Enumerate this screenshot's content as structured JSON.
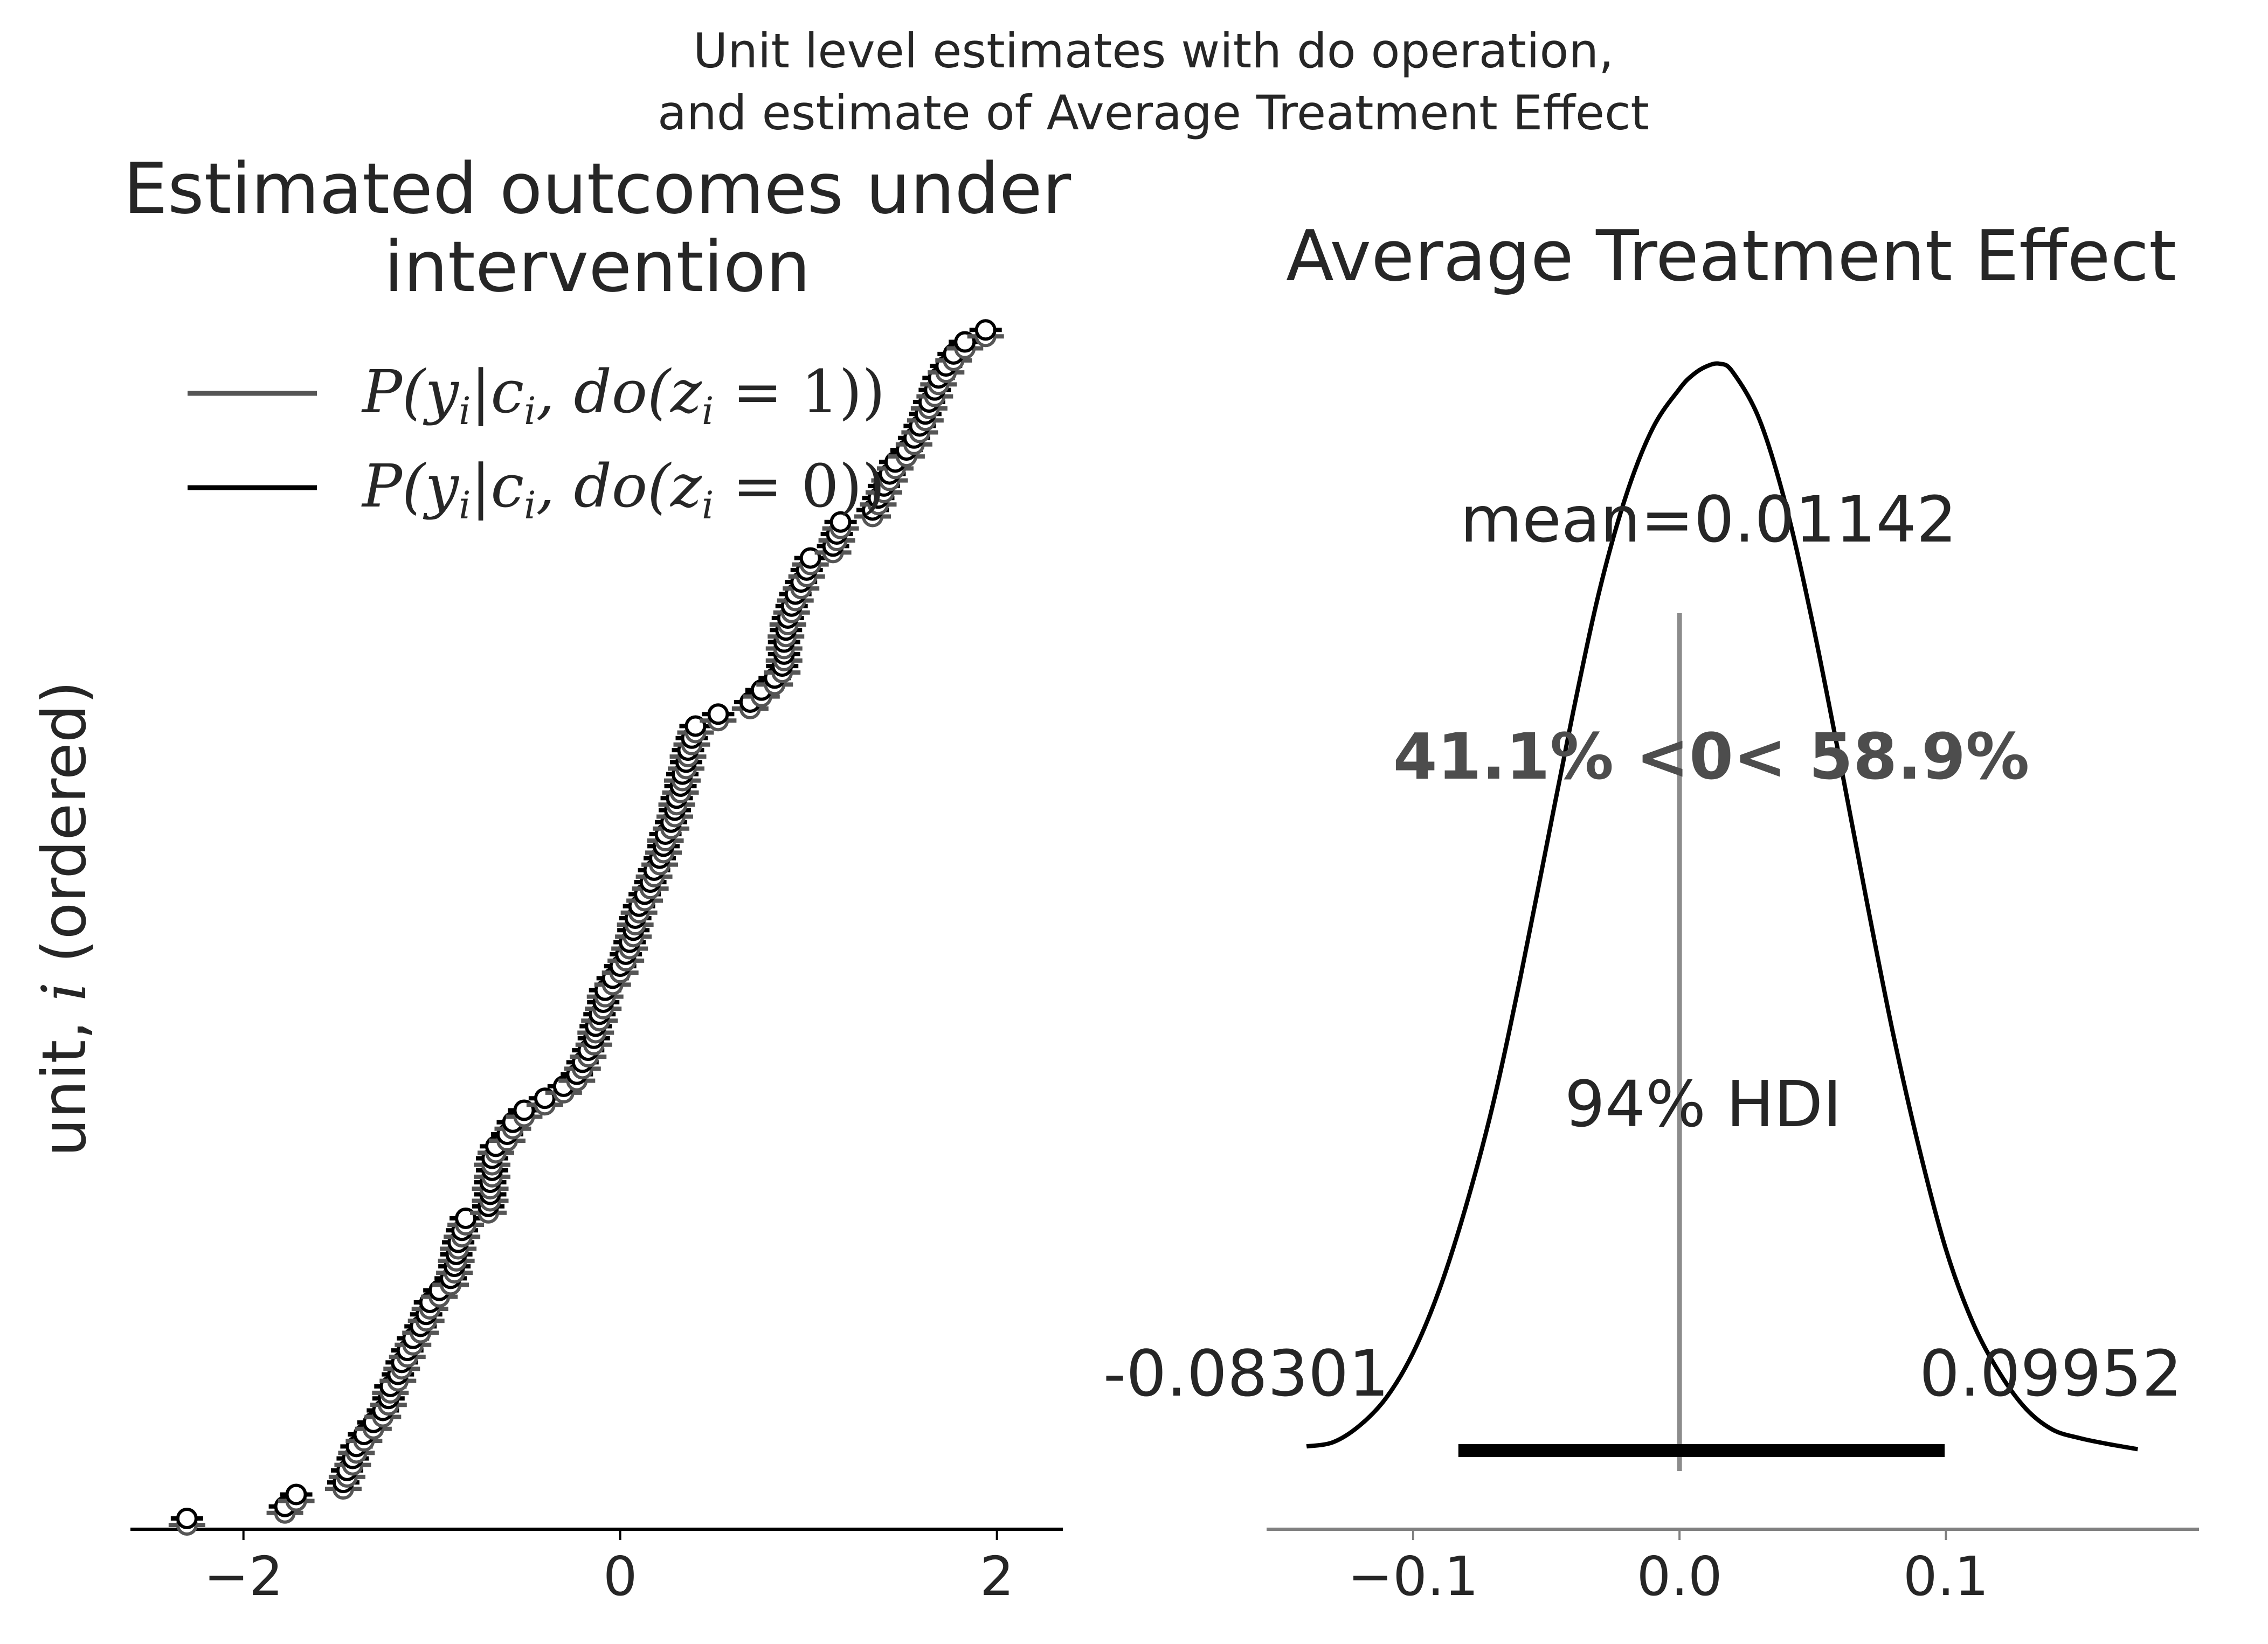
{
  "suptitle": {
    "line1": "Unit level estimates with do operation,",
    "line2": "and estimate of Average Treatment Effect"
  },
  "chart_data": [
    {
      "type": "scatter",
      "title": "Estimated outcomes under intervention",
      "title_line1": "Estimated outcomes under",
      "title_line2": "intervention",
      "ylabel": "unit, i (ordered)",
      "ylabel_prefix": "unit, ",
      "ylabel_var": "i",
      "ylabel_suffix": " (ordered)",
      "xlim": [
        -2.6,
        2.35
      ],
      "ylim": [
        0,
        100
      ],
      "xticks": [
        -2,
        0,
        2
      ],
      "xtick_labels": [
        "−2",
        "0",
        "2"
      ],
      "legend": {
        "placement": "upper-left",
        "entries": [
          {
            "label": "P(y_i|c_i, do(z_i = 1))",
            "color": "#555555"
          },
          {
            "label": "P(y_i|c_i, do(z_i = 0))",
            "color": "#000000"
          }
        ]
      },
      "series": [
        {
          "name": "P(y_i|c_i, do(z_i = 1))",
          "color": "#555555",
          "x": [
            -2.3,
            -1.78,
            -1.72,
            -1.47,
            -1.45,
            -1.42,
            -1.4,
            -1.36,
            -1.31,
            -1.26,
            -1.23,
            -1.22,
            -1.18,
            -1.16,
            -1.13,
            -1.1,
            -1.06,
            -1.03,
            -1.01,
            -0.96,
            -0.9,
            -0.88,
            -0.87,
            -0.86,
            -0.84,
            -0.82,
            -0.7,
            -0.69,
            -0.69,
            -0.68,
            -0.68,
            -0.66,
            -0.6,
            -0.57,
            -0.51,
            -0.4,
            -0.3,
            -0.23,
            -0.2,
            -0.17,
            -0.14,
            -0.13,
            -0.11,
            -0.09,
            -0.08,
            -0.04,
            0.0,
            0.03,
            0.05,
            0.07,
            0.08,
            0.1,
            0.13,
            0.16,
            0.18,
            0.21,
            0.23,
            0.24,
            0.27,
            0.29,
            0.3,
            0.32,
            0.33,
            0.35,
            0.36,
            0.38,
            0.4,
            0.52,
            0.69,
            0.75,
            0.82,
            0.86,
            0.87,
            0.87,
            0.88,
            0.89,
            0.91,
            0.93,
            0.96,
            0.99,
            1.01,
            1.13,
            1.15,
            1.17,
            1.34,
            1.37,
            1.4,
            1.43,
            1.46,
            1.52,
            1.56,
            1.59,
            1.62,
            1.64,
            1.67,
            1.69,
            1.73,
            1.77,
            1.83,
            1.94
          ],
          "y": [
            0,
            1,
            2,
            3,
            4,
            5,
            6,
            7,
            8,
            9,
            10,
            11,
            12,
            13,
            14,
            15,
            16,
            17,
            18,
            19,
            20,
            21,
            22,
            23,
            24,
            25,
            26,
            27,
            28,
            29,
            30,
            31,
            32,
            33,
            34,
            35,
            36,
            37,
            38,
            39,
            40,
            41,
            42,
            43,
            44,
            45,
            46,
            47,
            48,
            49,
            50,
            51,
            52,
            53,
            54,
            55,
            56,
            57,
            58,
            59,
            60,
            61,
            62,
            63,
            64,
            65,
            66,
            67,
            68,
            69,
            70,
            71,
            72,
            73,
            74,
            75,
            76,
            77,
            78,
            79,
            80,
            81,
            82,
            83,
            84,
            85,
            86,
            87,
            88,
            89,
            90,
            91,
            92,
            93,
            94,
            95,
            96,
            97,
            98,
            99
          ]
        },
        {
          "name": "P(y_i|c_i, do(z_i = 0))",
          "color": "#000000",
          "x": [
            -2.3,
            -1.78,
            -1.72,
            -1.47,
            -1.45,
            -1.42,
            -1.4,
            -1.36,
            -1.31,
            -1.26,
            -1.23,
            -1.22,
            -1.18,
            -1.16,
            -1.13,
            -1.1,
            -1.06,
            -1.03,
            -1.01,
            -0.96,
            -0.9,
            -0.88,
            -0.87,
            -0.86,
            -0.84,
            -0.82,
            -0.7,
            -0.69,
            -0.69,
            -0.68,
            -0.68,
            -0.66,
            -0.6,
            -0.57,
            -0.51,
            -0.4,
            -0.3,
            -0.23,
            -0.2,
            -0.17,
            -0.14,
            -0.13,
            -0.11,
            -0.09,
            -0.08,
            -0.04,
            0.0,
            0.03,
            0.05,
            0.07,
            0.08,
            0.1,
            0.13,
            0.16,
            0.18,
            0.21,
            0.23,
            0.24,
            0.27,
            0.29,
            0.3,
            0.32,
            0.33,
            0.35,
            0.36,
            0.38,
            0.4,
            0.52,
            0.69,
            0.75,
            0.82,
            0.86,
            0.87,
            0.87,
            0.88,
            0.89,
            0.91,
            0.93,
            0.96,
            0.99,
            1.01,
            1.13,
            1.15,
            1.17,
            1.34,
            1.37,
            1.4,
            1.43,
            1.46,
            1.52,
            1.56,
            1.59,
            1.62,
            1.64,
            1.67,
            1.69,
            1.73,
            1.77,
            1.83,
            1.94
          ],
          "y": [
            0,
            1,
            2,
            3,
            4,
            5,
            6,
            7,
            8,
            9,
            10,
            11,
            12,
            13,
            14,
            15,
            16,
            17,
            18,
            19,
            20,
            21,
            22,
            23,
            24,
            25,
            26,
            27,
            28,
            29,
            30,
            31,
            32,
            33,
            34,
            35,
            36,
            37,
            38,
            39,
            40,
            41,
            42,
            43,
            44,
            45,
            46,
            47,
            48,
            49,
            50,
            51,
            52,
            53,
            54,
            55,
            56,
            57,
            58,
            59,
            60,
            61,
            62,
            63,
            64,
            65,
            66,
            67,
            68,
            69,
            70,
            71,
            72,
            73,
            74,
            75,
            76,
            77,
            78,
            79,
            80,
            81,
            82,
            83,
            84,
            85,
            86,
            87,
            88,
            89,
            90,
            91,
            92,
            93,
            94,
            95,
            96,
            97,
            98,
            99
          ]
        }
      ]
    },
    {
      "type": "line",
      "title": "Average Treatment Effect",
      "xlim": [
        -0.155,
        0.195
      ],
      "xticks": [
        -0.1,
        0.0,
        0.1
      ],
      "xtick_labels": [
        "−0.1",
        "0.0",
        "0.1"
      ],
      "grid": false,
      "density": {
        "x": [
          -0.14,
          -0.13,
          -0.12,
          -0.11,
          -0.1,
          -0.09,
          -0.08,
          -0.07,
          -0.06,
          -0.05,
          -0.04,
          -0.03,
          -0.02,
          -0.01,
          0.0,
          0.005,
          0.01,
          0.015,
          0.02,
          0.03,
          0.04,
          0.05,
          0.06,
          0.07,
          0.08,
          0.09,
          0.1,
          0.11,
          0.12,
          0.13,
          0.14,
          0.15,
          0.16,
          0.172
        ],
        "y": [
          0.15,
          0.3,
          0.9,
          1.9,
          3.5,
          5.8,
          8.8,
          12.4,
          16.8,
          21.6,
          26.4,
          30.8,
          34.2,
          36.6,
          38.0,
          38.5,
          38.8,
          38.9,
          38.6,
          36.9,
          33.8,
          29.6,
          24.8,
          19.8,
          15.0,
          10.8,
          7.2,
          4.6,
          2.8,
          1.5,
          0.75,
          0.45,
          0.25,
          0.05
        ]
      },
      "mean_label": "mean=0.01142",
      "reference_value": 0.0,
      "prob_label": "41.1% <0< 58.9%",
      "hdi_label": "94% HDI",
      "hdi": [
        -0.08301,
        0.09952
      ],
      "hdi_low_label": "-0.08301",
      "hdi_high_label": "0.09952"
    }
  ]
}
